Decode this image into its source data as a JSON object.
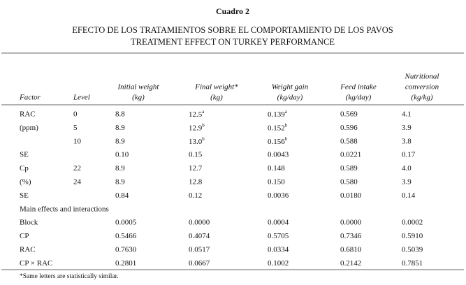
{
  "title": "Cuadro 2",
  "subtitle_es": "EFECTO DE LOS TRATAMIENTOS SOBRE EL COMPORTAMIENTO DE LOS PAVOS",
  "subtitle_en": "TREATMENT EFFECT ON TURKEY PERFORMANCE",
  "table": {
    "header": [
      [
        "Factor"
      ],
      [
        "Level"
      ],
      [
        "Initial weight",
        "(kg)"
      ],
      [
        "Final weight*",
        "(kg)"
      ],
      [
        "Weight gain",
        "(kg/day)"
      ],
      [
        "Feed intake",
        "(kg/day)"
      ],
      [
        "Nutritional",
        "conversion",
        "(kg/kg)"
      ]
    ],
    "rows": [
      [
        "RAC",
        "0",
        "8.8",
        {
          "text": "12.5",
          "sup": "a"
        },
        {
          "text": "0.139",
          "sup": "a"
        },
        "0.569",
        "4.1"
      ],
      [
        "(ppm)",
        "5",
        "8.9",
        {
          "text": "12.9",
          "sup": "b"
        },
        {
          "text": "0.152",
          "sup": "b"
        },
        "0.596",
        "3.9"
      ],
      [
        null,
        "10",
        "8.9",
        {
          "text": "13.0",
          "sup": "b"
        },
        {
          "text": "0.156",
          "sup": "b"
        },
        "0.588",
        "3.8"
      ],
      [
        "SE",
        null,
        "0.10",
        "0.15",
        "0.0043",
        "0.0221",
        "0.17"
      ],
      [
        "Cp",
        "22",
        "8.9",
        "12.7",
        "0.148",
        "0.589",
        "4.0"
      ],
      [
        "(%)",
        "24",
        "8.9",
        "12.8",
        "0.150",
        "0.580",
        "3.9"
      ],
      [
        "SE",
        null,
        "0.84",
        "0.12",
        "0.0036",
        "0.0180",
        "0.14"
      ],
      [
        "Main effects and interactions"
      ],
      [
        "Block",
        null,
        "0.0005",
        "0.0000",
        "0.0004",
        "0.0000",
        "0.0002"
      ],
      [
        "CP",
        null,
        "0.5466",
        "0.4074",
        "0.5705",
        "0.7346",
        "0.5910"
      ],
      [
        "RAC",
        null,
        "0.7630",
        "0.0517",
        "0.0334",
        "0.6810",
        "0.5039"
      ],
      [
        "CP × RAC",
        null,
        "0.2801",
        "0.0667",
        "0.1002",
        "0.2142",
        "0.7851"
      ]
    ]
  },
  "footnote": "*Same letters are statistically similar."
}
